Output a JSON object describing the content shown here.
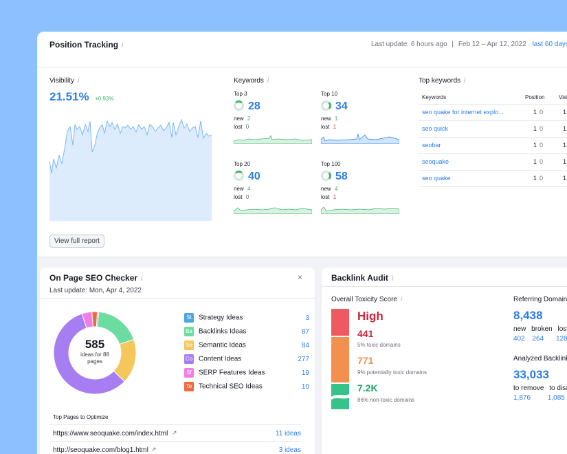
{
  "position_tracking": {
    "title": "Position Tracking",
    "info": "i",
    "last_update": "Last update: 6 hours ago",
    "separator": "|",
    "date_range": "Feb 12 – Apr 12, 2022",
    "period": "last 60 days",
    "visibility": {
      "label": "Visibility",
      "value": "21.51%",
      "change": "+0.93%"
    },
    "keywords": {
      "label": "Keywords",
      "groups": [
        {
          "label": "Top 3",
          "value": "28",
          "new_label": "new",
          "new": "2",
          "lost_label": "lost",
          "lost": "0"
        },
        {
          "label": "Top 10",
          "value": "34",
          "new_label": "new",
          "new": "1",
          "lost_label": "lost",
          "lost": "1"
        },
        {
          "label": "Top 20",
          "value": "40",
          "new_label": "new",
          "new": "4",
          "lost_label": "lost",
          "lost": "0"
        },
        {
          "label": "Top 100",
          "value": "58",
          "new_label": "new",
          "new": "4",
          "lost_label": "lost",
          "lost": "1"
        }
      ]
    },
    "top_keywords": {
      "label": "Top keywords",
      "col_keyword": "Keywords",
      "col_position": "Position",
      "col_visibility": "Visi",
      "rows": [
        {
          "keyword": "seo quake for internet explo...",
          "position": "1",
          "change": "0",
          "vis": "1"
        },
        {
          "keyword": "seo quick",
          "position": "1",
          "change": "0",
          "vis": "1"
        },
        {
          "keyword": "seobar",
          "position": "1",
          "change": "0",
          "vis": "1"
        },
        {
          "keyword": "seoquake",
          "position": "1",
          "change": "0",
          "vis": "1"
        },
        {
          "keyword": "seo quake",
          "position": "1",
          "change": "0",
          "vis": "1"
        }
      ]
    },
    "view_full_report": "View full report"
  },
  "onpage": {
    "title": "On Page SEO Checker",
    "info": "i",
    "close": "×",
    "last_update": "Last update: Mon, Apr 4, 2022",
    "donut_value": "585",
    "donut_caption": "ideas for 88 pages",
    "ideas": [
      {
        "abbr": "St",
        "label": "Strategy Ideas",
        "count": "3",
        "color": "#4fa6e3"
      },
      {
        "abbr": "Ba",
        "label": "Backlinks Ideas",
        "count": "87",
        "color": "#6ddca0"
      },
      {
        "abbr": "Se",
        "label": "Semantic Ideas",
        "count": "84",
        "color": "#f5c65a"
      },
      {
        "abbr": "Co",
        "label": "Content Ideas",
        "count": "277",
        "color": "#a67ef2"
      },
      {
        "abbr": "Sf",
        "label": "SERP Features Ideas",
        "count": "19",
        "color": "#ef7fe6"
      },
      {
        "abbr": "Te",
        "label": "Technical SEO Ideas",
        "count": "10",
        "color": "#ee6b40"
      }
    ],
    "top_pages_label": "Top Pages to Optimize",
    "pages": [
      {
        "url": "https://www.seoquake.com/index.html",
        "ideas": "11 ideas"
      },
      {
        "url": "http://seoquake.com/blog1.html",
        "ideas": "3 ideas"
      }
    ]
  },
  "backlink": {
    "title": "Backlink Audit",
    "info": "i",
    "toxicity_label": "Overall Toxicity Score",
    "level": "High",
    "toxic_count": "441",
    "toxic_label": "5% toxic domains",
    "potential_count": "771",
    "potential_label": "9% potentially toxic domains",
    "non_toxic_count": "7.2K",
    "non_toxic_label": "86% non-toxic domains",
    "referring_label": "Referring Domains",
    "referring_value": "8,438",
    "ref_new_label": "new",
    "ref_new": "402",
    "ref_broken_label": "broken",
    "ref_broken": "264",
    "ref_lost_label": "lost",
    "ref_lost": "128",
    "analyzed_label": "Analyzed Backlinks",
    "analyzed_value": "33,033",
    "remove_label": "to remove",
    "remove_value": "1,876",
    "disavow_label": "to disavow",
    "disavow_value": "1,085"
  },
  "colors": {
    "accent": "#2b7de9",
    "green": "#3fb568",
    "red": "#e0343e",
    "orange": "#f38f4f",
    "teal": "#35c28b"
  }
}
